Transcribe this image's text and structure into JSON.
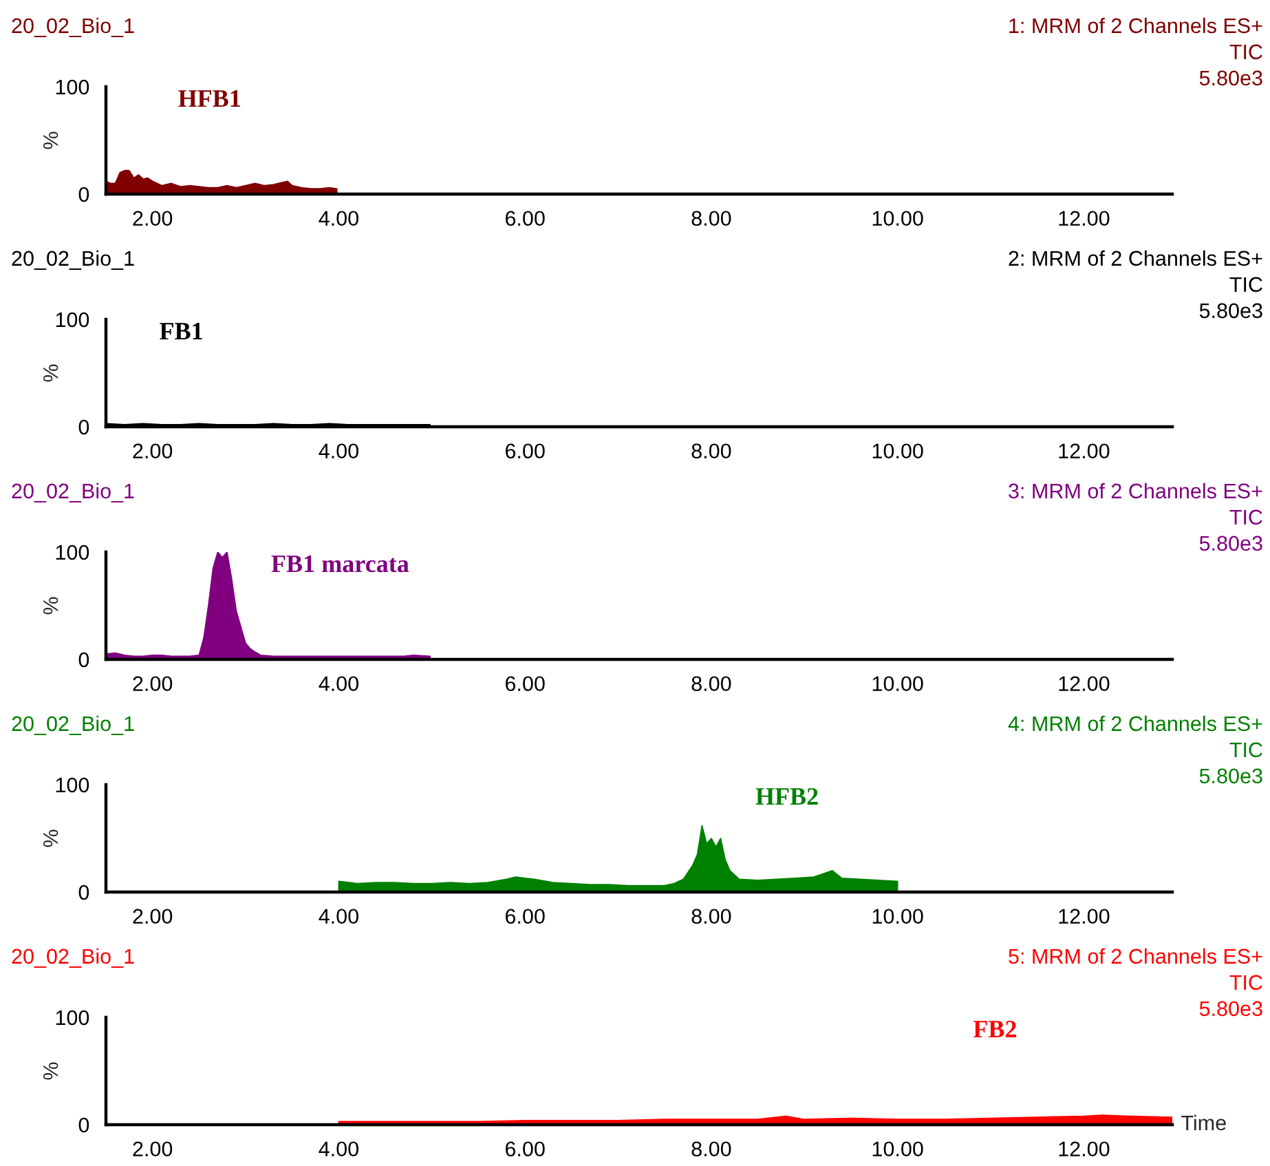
{
  "chart_data": [
    {
      "type": "area",
      "title": "20_02_Bio_1",
      "subtitle": "1: MRM of 2 Channels ES+",
      "ylabel": "%",
      "annotations": [
        "TIC",
        "5.80e3"
      ],
      "x": [
        1.5,
        1.55,
        1.6,
        1.65,
        1.7,
        1.75,
        1.8,
        1.85,
        1.9,
        1.95,
        2.0,
        2.1,
        2.2,
        2.3,
        2.4,
        2.5,
        2.6,
        2.7,
        2.8,
        2.9,
        3.0,
        3.1,
        3.2,
        3.3,
        3.4,
        3.45,
        3.5,
        3.6,
        3.7,
        3.8,
        3.9,
        3.98
      ],
      "series": [
        {
          "name": "HFB1",
          "color": "#800000",
          "values": [
            12,
            10,
            10,
            20,
            22,
            22,
            15,
            18,
            14,
            15,
            12,
            8,
            10,
            7,
            8,
            7,
            6,
            6,
            8,
            6,
            8,
            10,
            8,
            9,
            11,
            12,
            8,
            6,
            5,
            5,
            6,
            5
          ]
        }
      ],
      "xlim": [
        1.5,
        12.95
      ],
      "ylim": [
        0,
        100
      ],
      "xticks": [
        {
          "value": 2,
          "label": "2.00"
        },
        {
          "value": 4,
          "label": "4.00"
        },
        {
          "value": 6,
          "label": "6.00"
        },
        {
          "value": 8,
          "label": "8.00"
        },
        {
          "value": 10,
          "label": "10.00"
        },
        {
          "value": 12,
          "label": "12.00"
        }
      ],
      "yticks": [
        0,
        100
      ]
    },
    {
      "type": "area",
      "title": "20_02_Bio_1",
      "subtitle": "2: MRM of 2 Channels ES+",
      "ylabel": "%",
      "annotations": [
        "TIC",
        "5.80e3"
      ],
      "x": [
        1.5,
        1.7,
        1.9,
        2.1,
        2.3,
        2.5,
        2.7,
        2.9,
        3.1,
        3.3,
        3.5,
        3.7,
        3.9,
        4.1,
        4.3,
        4.5,
        4.7,
        4.98
      ],
      "series": [
        {
          "name": "FB1",
          "color": "#000000",
          "values": [
            3,
            2,
            3,
            2,
            2,
            3,
            2,
            2,
            2,
            3,
            2,
            2,
            3,
            2,
            2,
            2,
            2,
            2
          ]
        }
      ],
      "xlim": [
        1.5,
        12.95
      ],
      "ylim": [
        0,
        100
      ],
      "xticks": [
        {
          "value": 2,
          "label": "2.00"
        },
        {
          "value": 4,
          "label": "4.00"
        },
        {
          "value": 6,
          "label": "6.00"
        },
        {
          "value": 8,
          "label": "8.00"
        },
        {
          "value": 10,
          "label": "10.00"
        },
        {
          "value": 12,
          "label": "12.00"
        }
      ],
      "yticks": [
        0,
        100
      ]
    },
    {
      "type": "area",
      "title": "20_02_Bio_1",
      "subtitle": "3: MRM of 2 Channels ES+",
      "ylabel": "%",
      "annotations": [
        "TIC",
        "5.80e3"
      ],
      "x": [
        1.5,
        1.6,
        1.7,
        1.8,
        1.9,
        2.0,
        2.1,
        2.2,
        2.3,
        2.4,
        2.5,
        2.55,
        2.6,
        2.65,
        2.7,
        2.75,
        2.8,
        2.85,
        2.9,
        2.95,
        3.0,
        3.05,
        3.1,
        3.16,
        3.3,
        3.5,
        3.7,
        3.9,
        4.1,
        4.3,
        4.5,
        4.7,
        4.8,
        4.98
      ],
      "series": [
        {
          "name": "FB1 marcata",
          "color": "#800080",
          "values": [
            5,
            6,
            4,
            3,
            3,
            4,
            4,
            3,
            3,
            3,
            4,
            20,
            50,
            85,
            100,
            95,
            100,
            75,
            45,
            30,
            15,
            10,
            7,
            4,
            3,
            3,
            3,
            3,
            3,
            3,
            3,
            3,
            4,
            3
          ]
        }
      ],
      "xlim": [
        1.5,
        12.95
      ],
      "ylim": [
        0,
        100
      ],
      "xticks": [
        {
          "value": 2,
          "label": "2.00"
        },
        {
          "value": 4,
          "label": "4.00"
        },
        {
          "value": 6,
          "label": "6.00"
        },
        {
          "value": 8,
          "label": "8.00"
        },
        {
          "value": 10,
          "label": "10.00"
        },
        {
          "value": 12,
          "label": "12.00"
        }
      ],
      "yticks": [
        0,
        100
      ]
    },
    {
      "type": "area",
      "title": "20_02_Bio_1",
      "subtitle": "4: MRM of 2 Channels ES+",
      "ylabel": "%",
      "annotations": [
        "TIC",
        "5.80e3"
      ],
      "x": [
        4.0,
        4.2,
        4.4,
        4.6,
        4.8,
        5.0,
        5.2,
        5.4,
        5.6,
        5.8,
        5.9,
        6.0,
        6.1,
        6.3,
        6.5,
        6.7,
        6.9,
        7.1,
        7.3,
        7.5,
        7.6,
        7.7,
        7.8,
        7.85,
        7.9,
        7.95,
        8.0,
        8.05,
        8.1,
        8.15,
        8.2,
        8.3,
        8.5,
        8.7,
        8.9,
        9.1,
        9.3,
        9.4,
        9.6,
        9.8,
        10.0
      ],
      "series": [
        {
          "name": "HFB2",
          "color": "#008000",
          "values": [
            10,
            8,
            9,
            9,
            8,
            8,
            9,
            8,
            9,
            12,
            14,
            13,
            12,
            9,
            8,
            7,
            7,
            6,
            6,
            6,
            8,
            12,
            25,
            35,
            62,
            45,
            50,
            42,
            50,
            30,
            20,
            12,
            11,
            12,
            13,
            14,
            20,
            13,
            12,
            11,
            10
          ]
        }
      ],
      "xlim": [
        1.5,
        12.95
      ],
      "ylim": [
        0,
        100
      ],
      "xticks": [
        {
          "value": 2,
          "label": "2.00"
        },
        {
          "value": 4,
          "label": "4.00"
        },
        {
          "value": 6,
          "label": "6.00"
        },
        {
          "value": 8,
          "label": "8.00"
        },
        {
          "value": 10,
          "label": "10.00"
        },
        {
          "value": 12,
          "label": "12.00"
        }
      ],
      "yticks": [
        0,
        100
      ]
    },
    {
      "type": "area",
      "title": "20_02_Bio_1",
      "subtitle": "5: MRM of 2 Channels ES+",
      "ylabel": "%",
      "xlabel": "Time",
      "annotations": [
        "TIC",
        "5.80e3"
      ],
      "x": [
        4.0,
        4.5,
        5.0,
        5.5,
        6.0,
        6.5,
        7.0,
        7.5,
        8.0,
        8.5,
        8.8,
        9.0,
        9.5,
        10.0,
        10.5,
        11.0,
        11.5,
        12.0,
        12.2,
        12.5,
        12.95
      ],
      "series": [
        {
          "name": "FB2",
          "color": "#ff0000",
          "values": [
            3,
            3,
            3,
            3,
            4,
            4,
            4,
            5,
            5,
            5,
            8,
            5,
            6,
            5,
            5,
            6,
            7,
            8,
            9,
            8,
            7
          ]
        }
      ],
      "xlim": [
        1.5,
        12.95
      ],
      "ylim": [
        0,
        100
      ],
      "xticks": [
        {
          "value": 2,
          "label": "2.00"
        },
        {
          "value": 4,
          "label": "4.00"
        },
        {
          "value": 6,
          "label": "6.00"
        },
        {
          "value": 8,
          "label": "8.00"
        },
        {
          "value": 10,
          "label": "10.00"
        },
        {
          "value": 12,
          "label": "12.00"
        }
      ],
      "yticks": [
        0,
        100
      ]
    }
  ]
}
